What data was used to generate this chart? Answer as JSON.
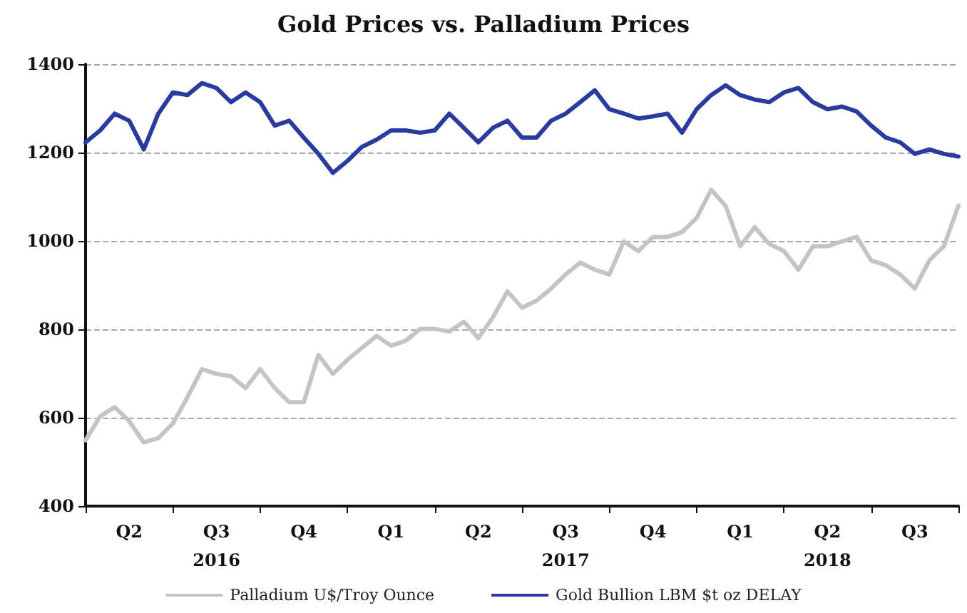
{
  "chart_data": {
    "type": "line",
    "title": "Gold Prices vs. Palladium Prices",
    "categories": [
      null,
      null,
      null,
      "Q2",
      null,
      null,
      null,
      null,
      null,
      "Q3\n2016",
      null,
      null,
      null,
      null,
      null,
      "Q4",
      null,
      null,
      null,
      null,
      null,
      "Q1",
      null,
      null,
      null,
      null,
      null,
      "Q2",
      null,
      null,
      null,
      null,
      null,
      "Q3\n2017",
      null,
      null,
      null,
      null,
      null,
      "Q4",
      null,
      null,
      null,
      null,
      null,
      "Q1",
      null,
      null,
      null,
      null,
      null,
      "Q2\n2018",
      null,
      null,
      null,
      null,
      null,
      "Q3",
      null,
      null,
      null
    ],
    "series": [
      {
        "name": "Palladium U$/Troy Ounce",
        "color": "#c4c4c4",
        "values": [
          549,
          603,
          624,
          592,
          544,
          554,
          587,
          646,
          710,
          699,
          694,
          667,
          710,
          667,
          635,
          635,
          742,
          699,
          731,
          758,
          785,
          763,
          774,
          801,
          801,
          795,
          817,
          780,
          827,
          886,
          849,
          865,
          892,
          924,
          951,
          935,
          924,
          999,
          977,
          1009,
          1009,
          1020,
          1052,
          1116,
          1079,
          988,
          1031,
          993,
          977,
          935,
          988,
          988,
          999,
          1009,
          956,
          945,
          924,
          892,
          956,
          988,
          1080
        ]
      },
      {
        "name": "Gold Bullion LBM $t oz DELAY",
        "color": "#2b3a9e",
        "values": [
          1223,
          1250,
          1288,
          1272,
          1207,
          1288,
          1336,
          1330,
          1357,
          1346,
          1314,
          1336,
          1314,
          1261,
          1272,
          1234,
          1197,
          1154,
          1181,
          1213,
          1229,
          1250,
          1250,
          1245,
          1250,
          1288,
          1256,
          1223,
          1256,
          1272,
          1234,
          1234,
          1272,
          1288,
          1314,
          1341,
          1298,
          1288,
          1277,
          1282,
          1288,
          1245,
          1298,
          1330,
          1352,
          1330,
          1320,
          1314,
          1336,
          1346,
          1314,
          1298,
          1304,
          1293,
          1261,
          1234,
          1223,
          1197,
          1207,
          1197,
          1191
        ]
      }
    ],
    "ylim": [
      400,
      1400
    ],
    "yticks": [
      400,
      600,
      800,
      1000,
      1200,
      1400
    ],
    "grid": "y",
    "legend": "bottom",
    "marker": "none",
    "line_style": "solid"
  }
}
